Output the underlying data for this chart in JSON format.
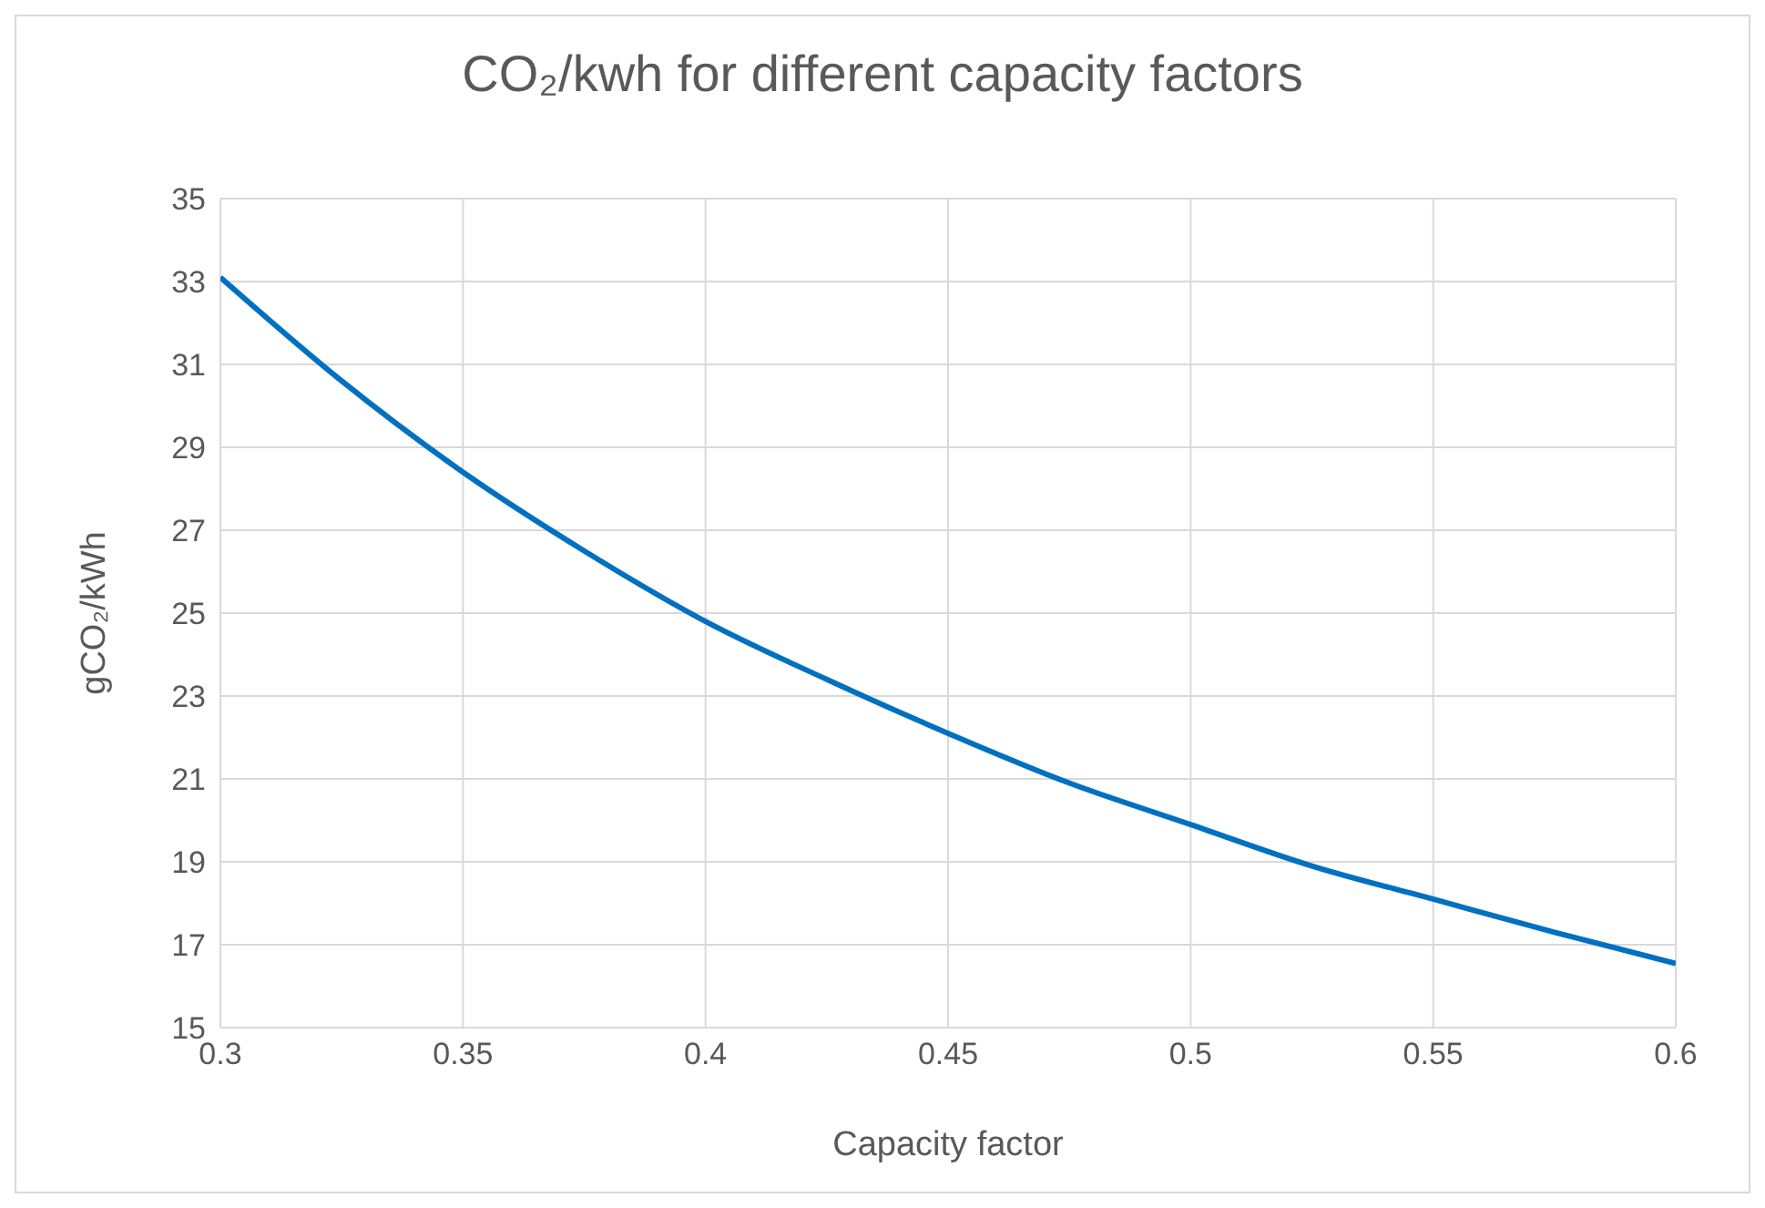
{
  "chart_data": {
    "type": "line",
    "title": "CO₂/kwh for different capacity factors",
    "xlabel": "Capacity factor",
    "ylabel": "gCO₂/kWh",
    "x": [
      0.3,
      0.325,
      0.35,
      0.375,
      0.4,
      0.425,
      0.45,
      0.475,
      0.5,
      0.525,
      0.55,
      0.575,
      0.6
    ],
    "series": [
      {
        "color": "#0070c0",
        "values": [
          33.1,
          30.6,
          28.4,
          26.5,
          24.8,
          23.4,
          22.1,
          20.9,
          19.9,
          18.9,
          18.1,
          17.3,
          16.55
        ]
      }
    ],
    "xlim": [
      0.3,
      0.6
    ],
    "xticks": [
      0.3,
      0.35,
      0.4,
      0.45,
      0.5,
      0.55,
      0.6
    ],
    "ylim": [
      15,
      35
    ],
    "yticks": [
      15,
      17,
      19,
      21,
      23,
      25,
      27,
      29,
      31,
      33,
      35
    ],
    "grid": true,
    "marker": "none",
    "line_style": "solid",
    "legend": false
  }
}
